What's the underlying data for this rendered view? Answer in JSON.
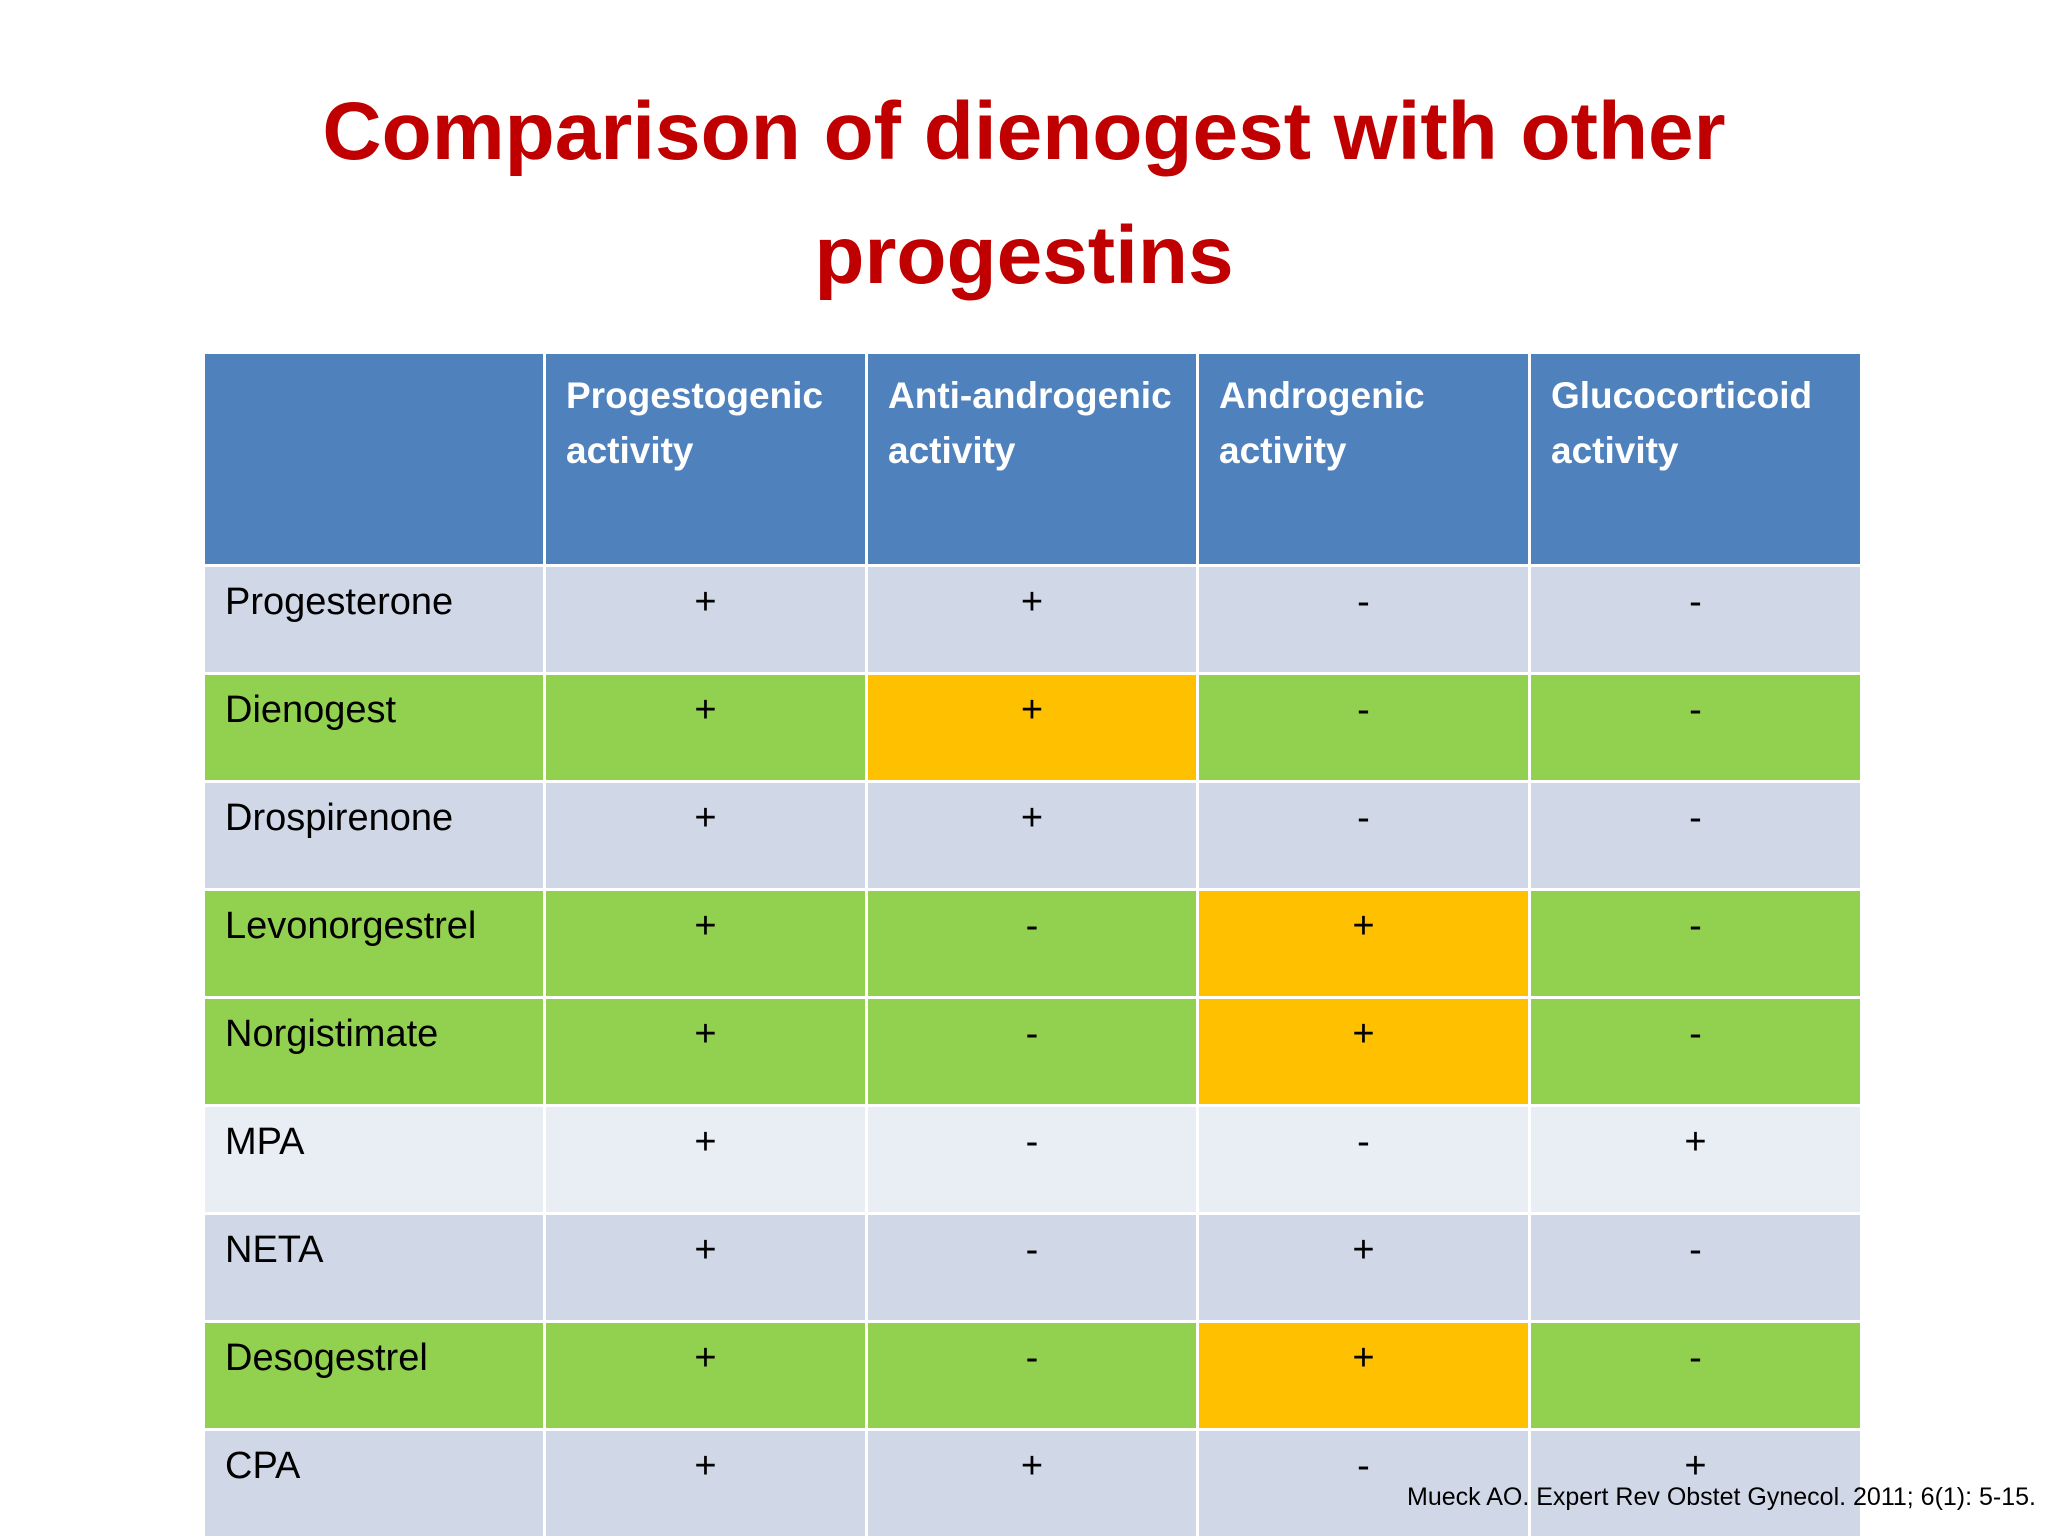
{
  "title": "Comparison of dienogest with other progestins",
  "table": {
    "header": [
      "Progestogenic activity",
      "Anti-androgenic activity",
      "Androgenic activity",
      "Glucocorticoid activity"
    ],
    "rows": [
      [
        "Progesterone",
        "+",
        "+",
        "-",
        "-"
      ],
      [
        "Dienogest",
        "+",
        "+",
        "-",
        "-"
      ],
      [
        "Drospirenone",
        "+",
        "+",
        "-",
        "-"
      ],
      [
        "Levonorgestrel",
        "+",
        "-",
        "+",
        "-"
      ],
      [
        "Norgistimate",
        "+",
        "-",
        "+",
        "-"
      ],
      [
        "MPA",
        "+",
        "-",
        "-",
        "+"
      ],
      [
        "NETA",
        "+",
        "-",
        "+",
        "-"
      ],
      [
        "Desogestrel",
        "+",
        "-",
        "+",
        "-"
      ],
      [
        "CPA",
        "+",
        "+",
        "-",
        "+"
      ]
    ]
  },
  "citation": "Mueck AO. Expert Rev Obstet Gynecol. 2011; 6(1): 5-15."
}
